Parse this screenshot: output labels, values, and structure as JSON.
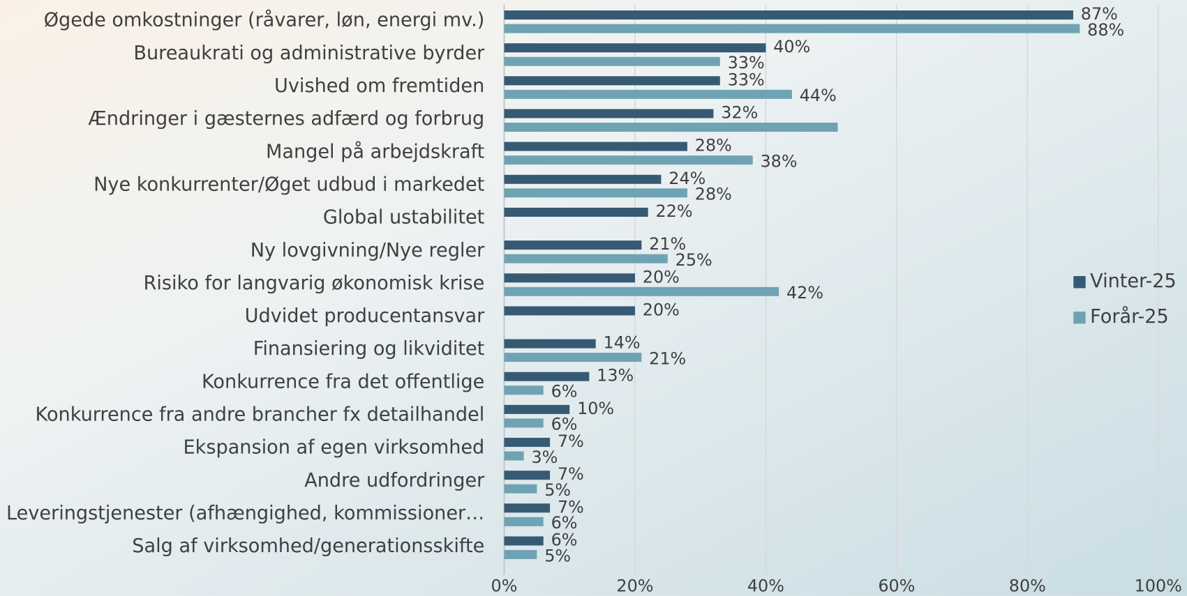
{
  "chart_data": {
    "type": "bar",
    "orientation": "horizontal",
    "categories": [
      "Øgede omkostninger (råvarer, løn, energi mv.)",
      "Bureaukrati og administrative byrder",
      "Uvished om fremtiden",
      "Ændringer i gæsternes adfærd og forbrug",
      "Mangel på arbejdskraft",
      "Nye konkurrenter/Øget udbud i markedet",
      "Global ustabilitet",
      "Ny lovgivning/Nye regler",
      "Risiko for langvarig økonomisk krise",
      "Udvidet producentansvar",
      "Finansiering og likviditet",
      "Konkurrence fra det offentlige",
      "Konkurrence fra andre brancher fx detailhandel",
      "Ekspansion af egen virksomhed",
      "Andre udfordringer",
      "Leveringstjenester (afhængighed, kommissioner…",
      "Salg af virksomhed/generationsskifte"
    ],
    "series": [
      {
        "name": "Vinter-25",
        "color": "#375a74",
        "values": [
          87,
          40,
          33,
          32,
          28,
          24,
          22,
          21,
          20,
          20,
          14,
          13,
          10,
          7,
          7,
          7,
          6
        ],
        "value_labels": [
          "87%",
          "40%",
          "33%",
          "32%",
          "28%",
          "24%",
          "22%",
          "21%",
          "20%",
          "20%",
          "14%",
          "13%",
          "10%",
          "7%",
          "7%",
          "7%",
          "6%"
        ]
      },
      {
        "name": "Forår-25",
        "color": "#6fa3b3",
        "values": [
          88,
          33,
          44,
          51,
          38,
          28,
          null,
          25,
          42,
          null,
          21,
          6,
          6,
          3,
          5,
          6,
          5
        ],
        "value_labels": [
          "88%",
          "33%",
          "44%",
          null,
          "38%",
          "28%",
          null,
          "25%",
          "42%",
          null,
          "21%",
          "6%",
          "6%",
          "3%",
          "5%",
          "6%",
          "5%"
        ]
      }
    ],
    "xlim": [
      0,
      100
    ],
    "xticks": [
      {
        "value": 0,
        "label": "0%"
      },
      {
        "value": 20,
        "label": "20%"
      },
      {
        "value": 40,
        "label": "40%"
      },
      {
        "value": 60,
        "label": "60%"
      },
      {
        "value": 80,
        "label": "80%"
      },
      {
        "value": 100,
        "label": "100%"
      }
    ],
    "grid": true,
    "legend": "right"
  }
}
